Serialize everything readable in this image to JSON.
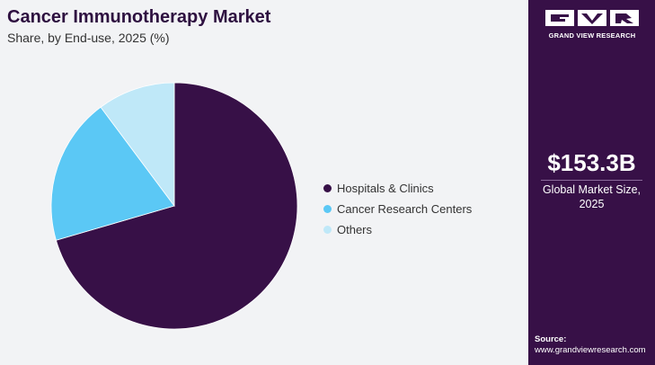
{
  "header": {
    "title": "Cancer Immunotherapy Market",
    "subtitle": "Share, by End-use, 2025 (%)"
  },
  "chart_data": {
    "type": "pie",
    "title": "Cancer Immunotherapy Market",
    "subtitle": "Share, by End-use, 2025 (%)",
    "categories": [
      "Hospitals & Clinics",
      "Cancer Research Centers",
      "Others"
    ],
    "values": [
      70.5,
      19.3,
      10.2
    ],
    "colors": [
      "#371047",
      "#5bc8f5",
      "#bfe8f8"
    ],
    "legend_position": "right",
    "start_angle_deg": 0,
    "direction": "clockwise"
  },
  "legend": {
    "items": [
      {
        "label": "Hospitals & Clinics",
        "color": "#371047"
      },
      {
        "label": "Cancer Research Centers",
        "color": "#5bc8f5"
      },
      {
        "label": "Others",
        "color": "#bfe8f8"
      }
    ]
  },
  "sidebar": {
    "logo_text": "GRAND VIEW RESEARCH",
    "market_size": "$153.3B",
    "market_label_line1": "Global Market Size,",
    "market_label_line2": "2025",
    "source_label": "Source:",
    "source_url": "www.grandviewresearch.com"
  },
  "colors": {
    "brand_purple": "#371047",
    "background": "#f2f3f5"
  }
}
